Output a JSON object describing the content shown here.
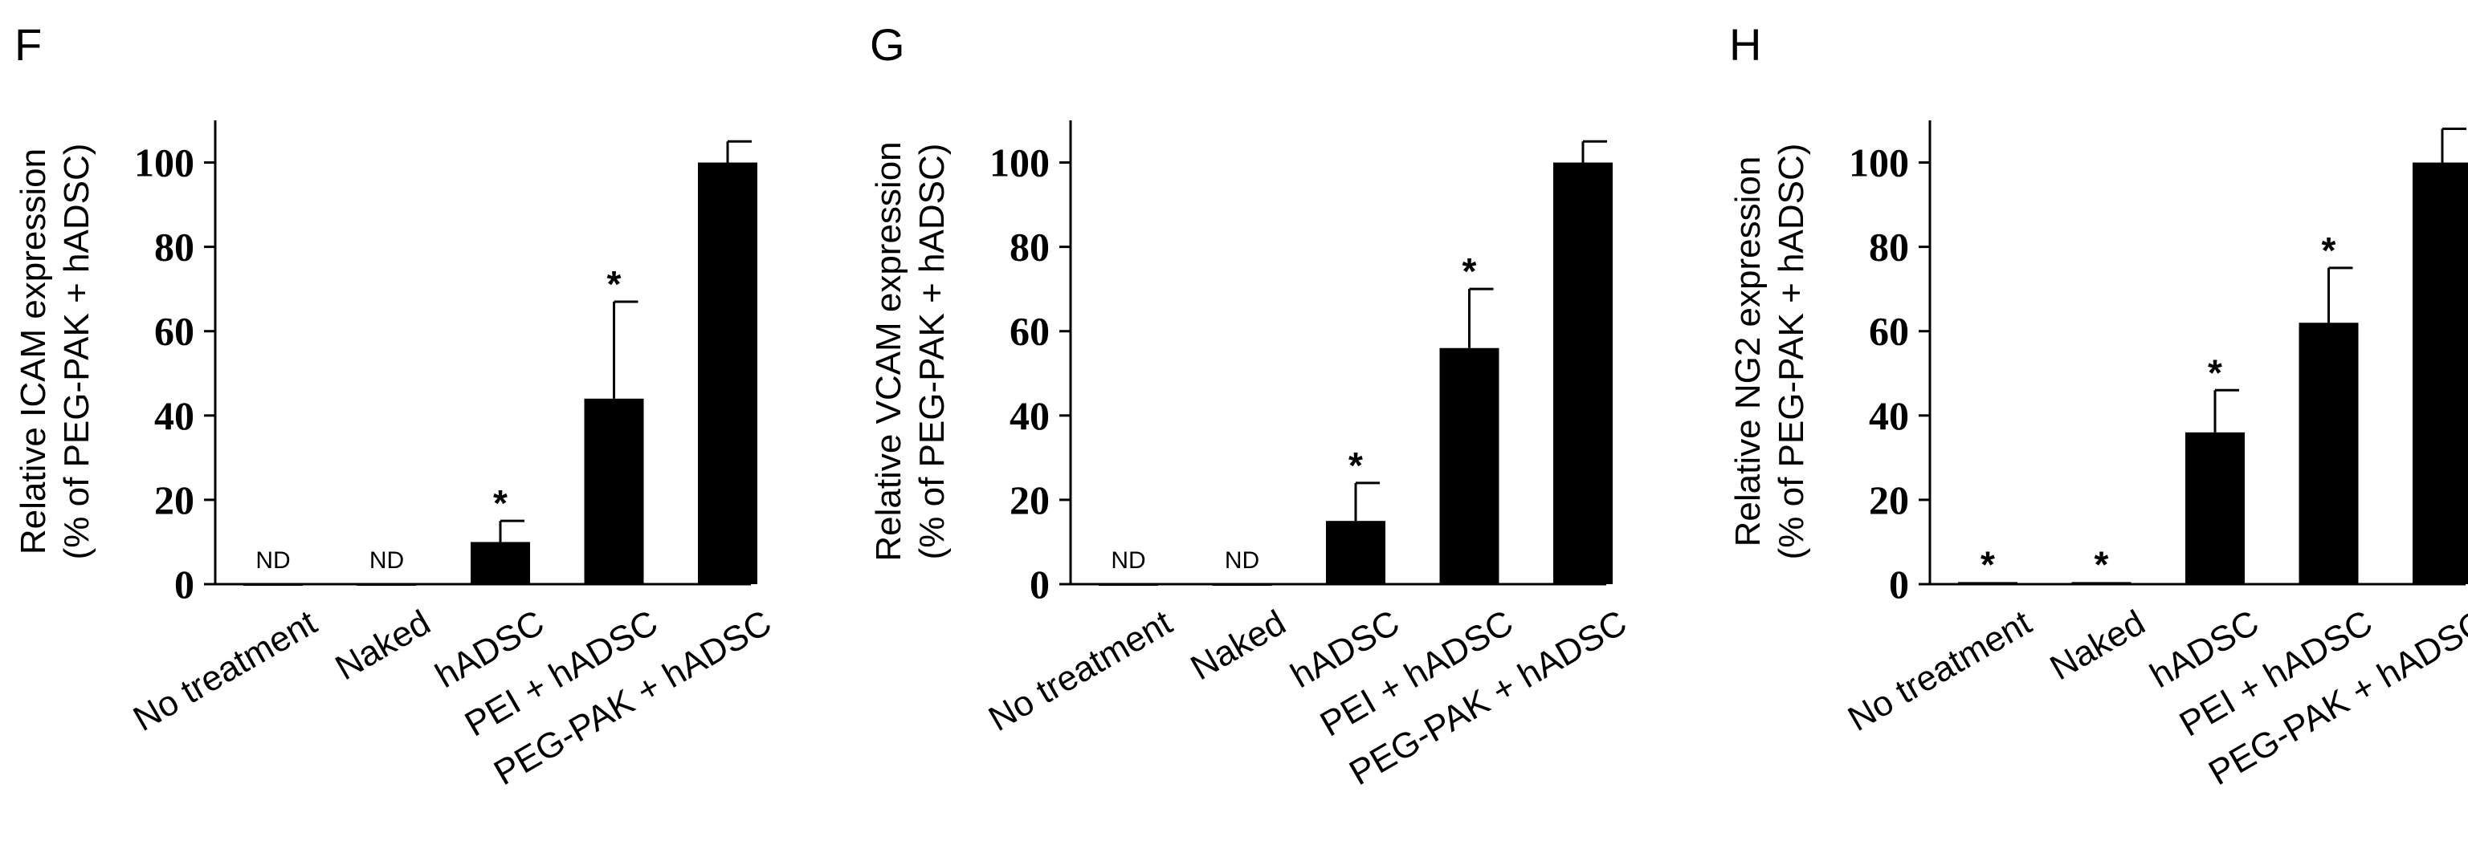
{
  "chart_data": [
    {
      "type": "bar",
      "panel": "F",
      "ylabel": [
        "Relative ICAM expression",
        "(% of PEG-PAK + hADSC)"
      ],
      "categories": [
        "No treatment",
        "Naked",
        "hADSC",
        "PEI + hADSC",
        "PEG-PAK + hADSC"
      ],
      "values": [
        0,
        0,
        10,
        44,
        100
      ],
      "errors": [
        0,
        0,
        5,
        23,
        5
      ],
      "bar_labels": [
        "ND",
        "ND",
        "*",
        "*",
        ""
      ],
      "yticks": [
        0,
        20,
        40,
        60,
        80,
        100
      ],
      "ylim": [
        0,
        110
      ],
      "bar_color": "#000000"
    },
    {
      "type": "bar",
      "panel": "G",
      "ylabel": [
        "Relative VCAM expression",
        "(% of PEG-PAK + hADSC)"
      ],
      "categories": [
        "No treatment",
        "Naked",
        "hADSC",
        "PEI + hADSC",
        "PEG-PAK + hADSC"
      ],
      "values": [
        0,
        0,
        15,
        56,
        100
      ],
      "errors": [
        0,
        0,
        9,
        14,
        5
      ],
      "bar_labels": [
        "ND",
        "ND",
        "*",
        "*",
        ""
      ],
      "yticks": [
        0,
        20,
        40,
        60,
        80,
        100
      ],
      "ylim": [
        0,
        110
      ],
      "bar_color": "#000000"
    },
    {
      "type": "bar",
      "panel": "H",
      "ylabel": [
        "Relative NG2 expression",
        "(% of PEG-PAK + hADSC)"
      ],
      "categories": [
        "No treatment",
        "Naked",
        "hADSC",
        "PEI + hADSC",
        "PEG-PAK + hADSC"
      ],
      "values": [
        0.5,
        0.5,
        36,
        62,
        100
      ],
      "errors": [
        0,
        0,
        10,
        13,
        8
      ],
      "bar_labels": [
        "*",
        "*",
        "*",
        "*",
        ""
      ],
      "yticks": [
        0,
        20,
        40,
        60,
        80,
        100
      ],
      "ylim": [
        0,
        110
      ],
      "bar_color": "#000000"
    }
  ]
}
